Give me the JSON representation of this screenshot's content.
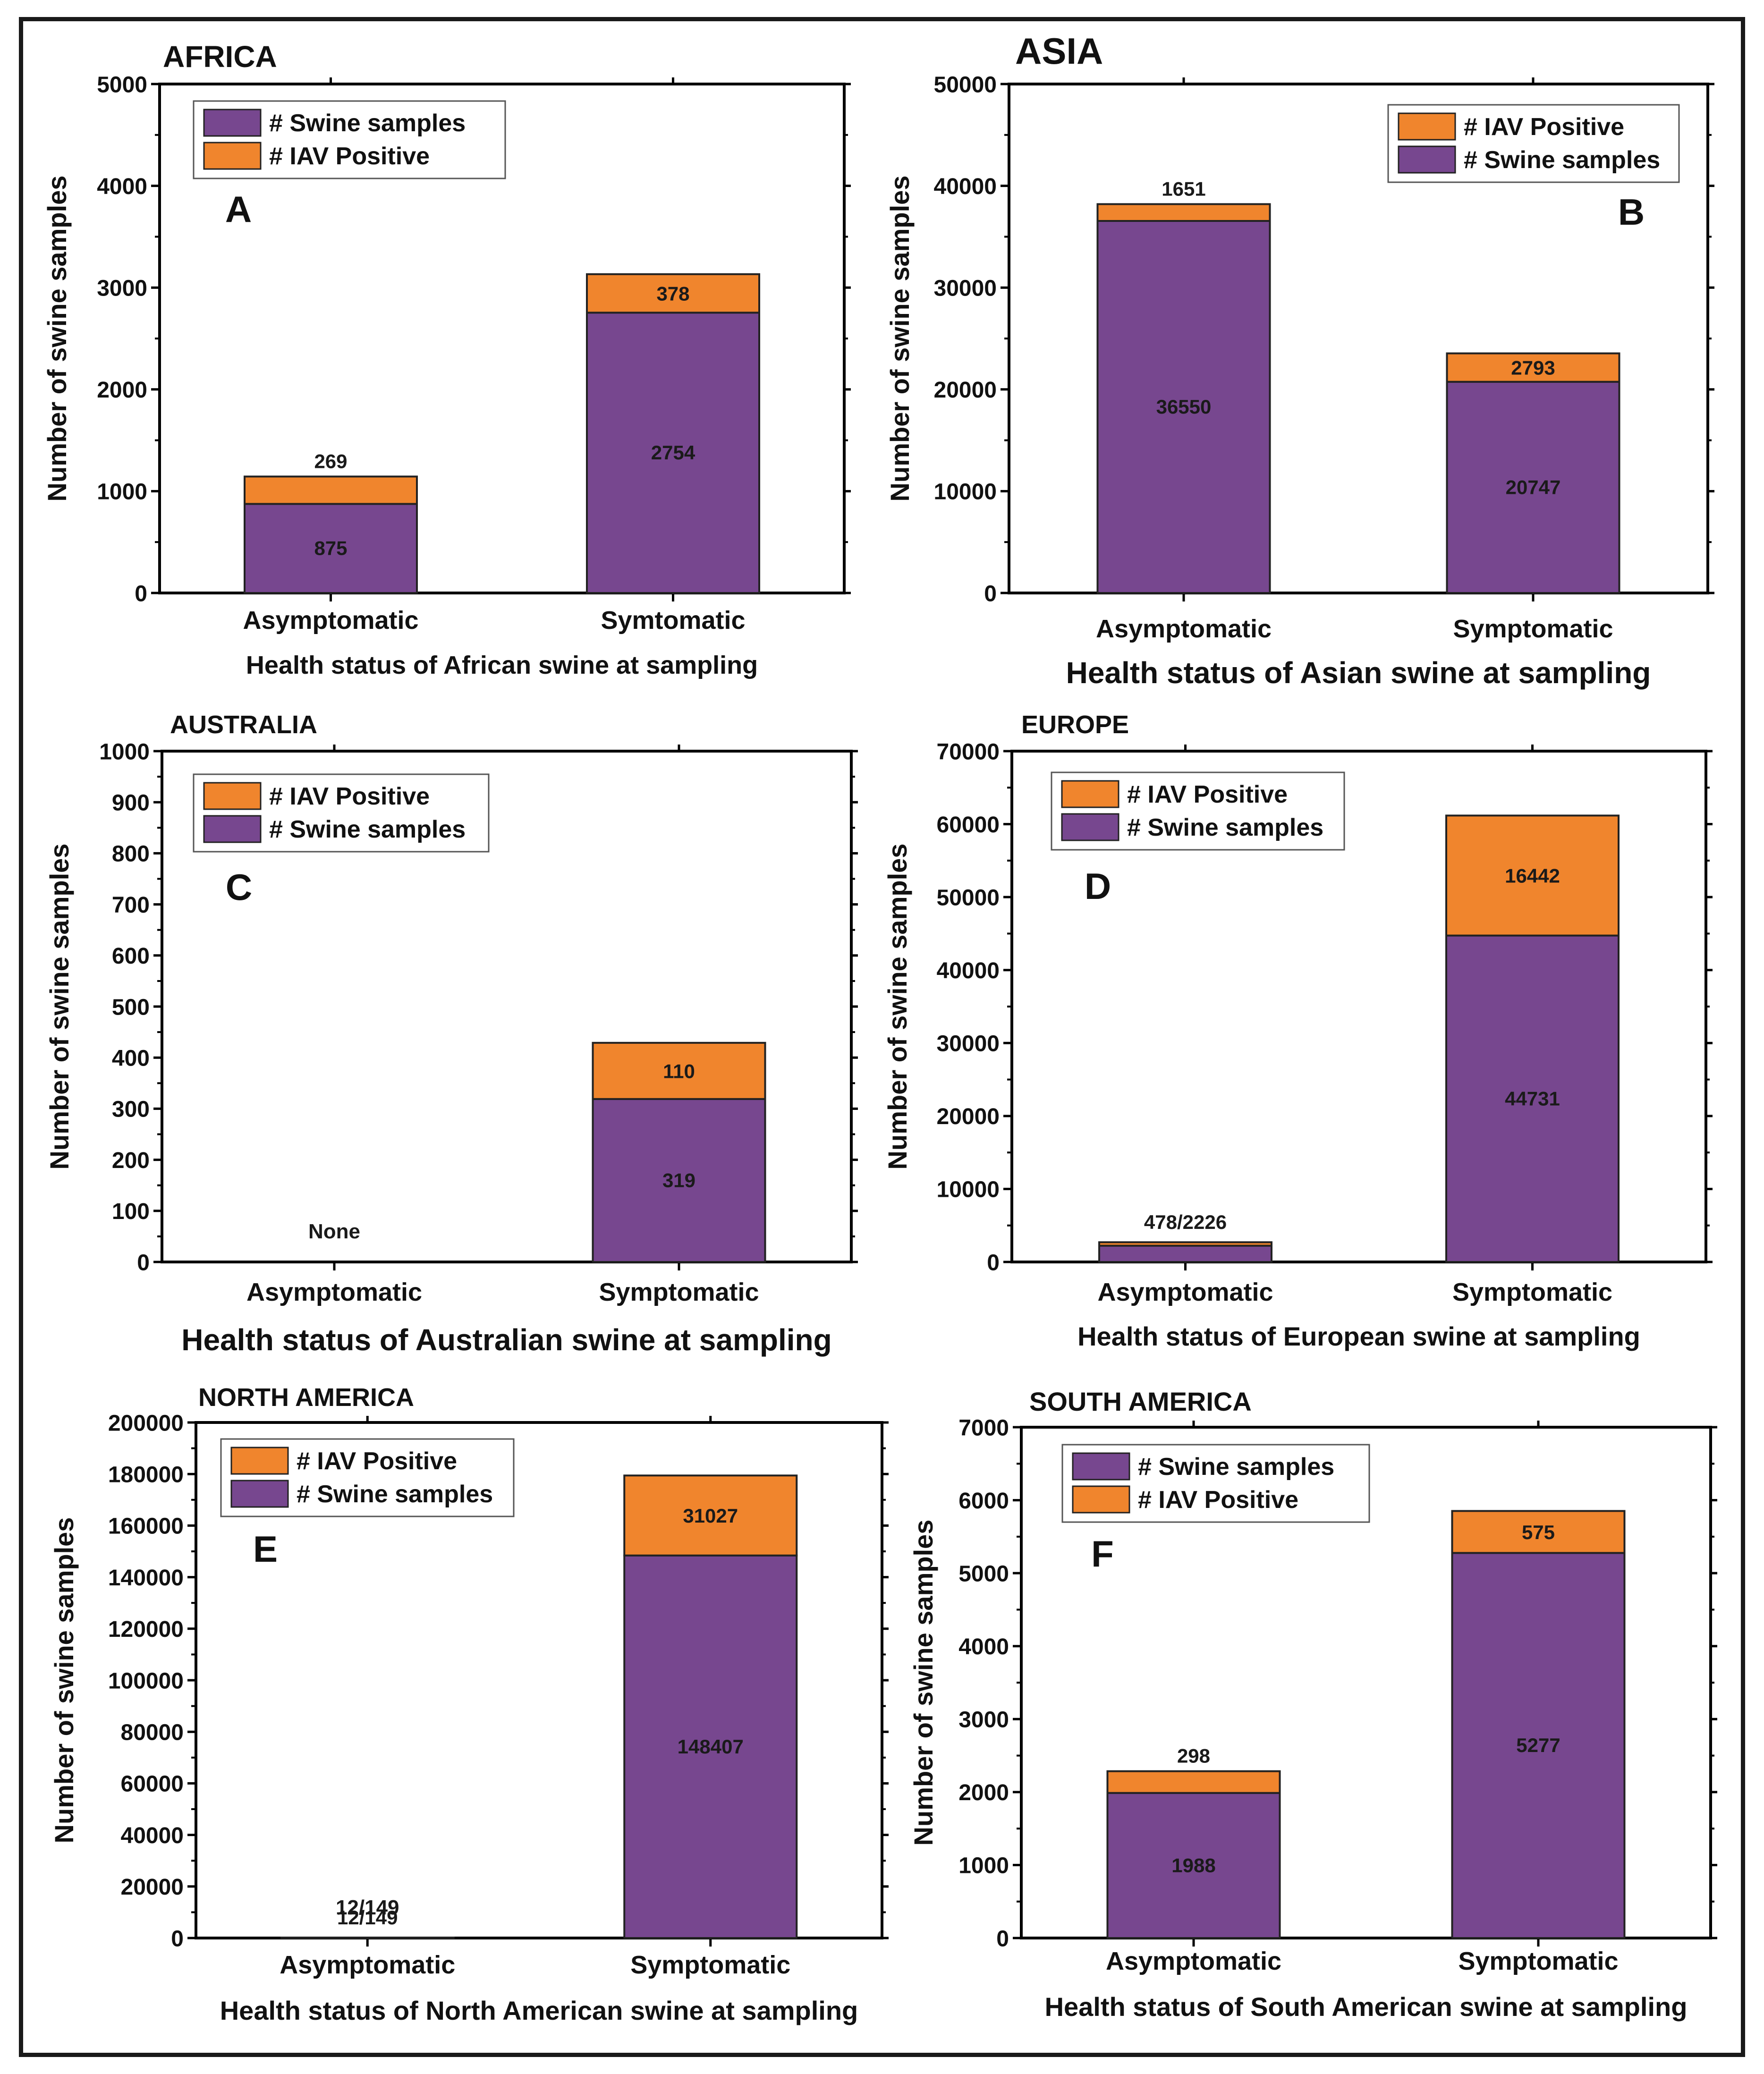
{
  "colors": {
    "swine_samples": "#77478f",
    "iav_positive": "#f0852d",
    "axis": "#000000",
    "text": "#111111"
  },
  "legend_labels": {
    "swine": "# Swine samples",
    "iav": "# IAV Positive"
  },
  "chart_data": [
    {
      "type": "bar",
      "stacked": true,
      "title": "AFRICA",
      "panel_letter": "A",
      "categories": [
        "Asymptomatic",
        "Symtomatic"
      ],
      "series": [
        {
          "name": "# Swine samples",
          "values": [
            875,
            2754
          ]
        },
        {
          "name": "# IAV Positive",
          "values": [
            269,
            378
          ]
        }
      ],
      "legend_order": [
        "# Swine samples",
        "# IAV Positive"
      ],
      "bar_labels": [
        {
          "swine": "875",
          "iav": "269"
        },
        {
          "swine": "2754",
          "iav": "378"
        }
      ],
      "xlabel": "Health status of African swine at sampling",
      "ylabel": "Number of swine samples",
      "ylim": [
        0,
        5000
      ],
      "yticks": [
        "0",
        "1000",
        "2000",
        "3000",
        "4000",
        "5000"
      ]
    },
    {
      "type": "bar",
      "stacked": true,
      "title": "ASIA",
      "panel_letter": "B",
      "categories": [
        "Asymptomatic",
        "Symptomatic"
      ],
      "series": [
        {
          "name": "# Swine samples",
          "values": [
            36550,
            20747
          ]
        },
        {
          "name": "# IAV Positive",
          "values": [
            1651,
            2793
          ]
        }
      ],
      "legend_order": [
        "# IAV Positive",
        "# Swine samples"
      ],
      "bar_labels": [
        {
          "swine": "36550",
          "iav": "1651"
        },
        {
          "swine": "20747",
          "iav": "2793"
        }
      ],
      "xlabel": "Health status of Asian swine at sampling",
      "ylabel": "Number of swine samples",
      "ylim": [
        0,
        50000
      ],
      "yticks": [
        "0",
        "10000",
        "20000",
        "30000",
        "40000",
        "50000"
      ]
    },
    {
      "type": "bar",
      "stacked": true,
      "title": "AUSTRALIA",
      "panel_letter": "C",
      "categories": [
        "Asymptomatic",
        "Symptomatic"
      ],
      "series": [
        {
          "name": "# Swine samples",
          "values": [
            0,
            319
          ]
        },
        {
          "name": "# IAV Positive",
          "values": [
            0,
            110
          ]
        }
      ],
      "legend_order": [
        "# IAV Positive",
        "# Swine samples"
      ],
      "bar_labels": [
        {
          "note": "None"
        },
        {
          "swine": "319",
          "iav": "110"
        }
      ],
      "xlabel": "Health status of Australian swine at sampling",
      "ylabel": "Number of swine samples",
      "ylim": [
        0,
        1000
      ],
      "yticks": [
        "0",
        "100",
        "200",
        "300",
        "400",
        "500",
        "600",
        "700",
        "800",
        "900",
        "1000"
      ]
    },
    {
      "type": "bar",
      "stacked": true,
      "title": "EUROPE",
      "panel_letter": "D",
      "categories": [
        "Asymptomatic",
        "Symptomatic"
      ],
      "series": [
        {
          "name": "# Swine samples",
          "values": [
            2226,
            44731
          ]
        },
        {
          "name": "# IAV Positive",
          "values": [
            478,
            16442
          ]
        }
      ],
      "legend_order": [
        "# IAV Positive",
        "# Swine samples"
      ],
      "bar_labels": [
        {
          "note": "478/2226"
        },
        {
          "swine": "44731",
          "iav": "16442"
        }
      ],
      "xlabel": "Health status of European swine at sampling",
      "ylabel": "Number of swine samples",
      "ylim": [
        0,
        70000
      ],
      "yticks": [
        "0",
        "10000",
        "20000",
        "30000",
        "40000",
        "50000",
        "60000",
        "70000"
      ]
    },
    {
      "type": "bar",
      "stacked": true,
      "title": "NORTH AMERICA",
      "panel_letter": "E",
      "categories": [
        "Asymptomatic",
        "Symptomatic"
      ],
      "series": [
        {
          "name": "# Swine samples",
          "values": [
            149,
            148407
          ]
        },
        {
          "name": "# IAV Positive",
          "values": [
            12,
            31027
          ]
        }
      ],
      "legend_order": [
        "# IAV Positive",
        "# Swine samples"
      ],
      "bar_labels": [
        {
          "note": "12/149"
        },
        {
          "swine": "148407",
          "iav": "31027"
        }
      ],
      "xlabel": "Health status of North American swine at sampling",
      "ylabel": "Number of swine samples",
      "ylim": [
        0,
        200000
      ],
      "yticks": [
        "0",
        "20000",
        "40000",
        "60000",
        "80000",
        "100000",
        "120000",
        "140000",
        "160000",
        "180000",
        "200000"
      ]
    },
    {
      "type": "bar",
      "stacked": true,
      "title": "SOUTH AMERICA",
      "panel_letter": "F",
      "categories": [
        "Asymptomatic",
        "Symptomatic"
      ],
      "series": [
        {
          "name": "# Swine samples",
          "values": [
            1988,
            5277
          ]
        },
        {
          "name": "# IAV Positive",
          "values": [
            298,
            575
          ]
        }
      ],
      "legend_order": [
        "# Swine samples",
        "# IAV Positive"
      ],
      "bar_labels": [
        {
          "swine": "1988",
          "iav": "298"
        },
        {
          "swine": "5277",
          "iav": "575"
        }
      ],
      "xlabel": "Health status of South American swine at sampling",
      "ylabel": "Number of swine samples",
      "ylim": [
        0,
        7000
      ],
      "yticks": [
        "0",
        "1000",
        "2000",
        "3000",
        "4000",
        "5000",
        "6000",
        "7000"
      ]
    }
  ]
}
